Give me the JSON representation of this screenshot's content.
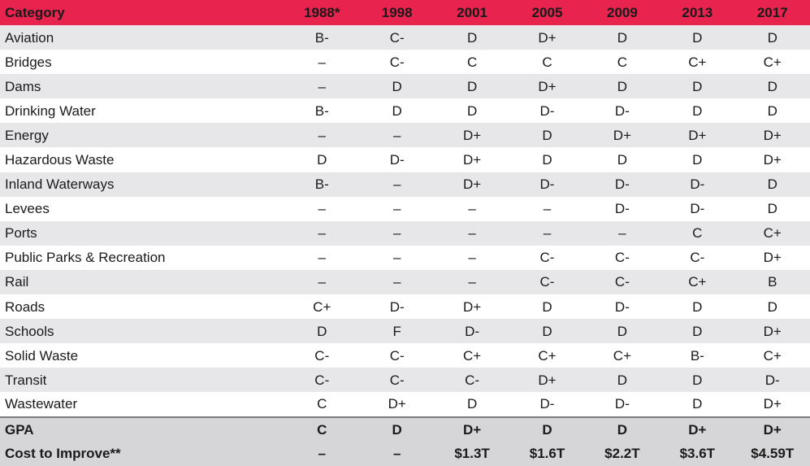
{
  "table": {
    "header": [
      "Category",
      "1988*",
      "1998",
      "2001",
      "2005",
      "2009",
      "2013",
      "2017"
    ],
    "rows": [
      [
        "Aviation",
        "B-",
        "C-",
        "D",
        "D+",
        "D",
        "D",
        "D"
      ],
      [
        "Bridges",
        "–",
        "C-",
        "C",
        "C",
        "C",
        "C+",
        "C+"
      ],
      [
        "Dams",
        "–",
        "D",
        "D",
        "D+",
        "D",
        "D",
        "D"
      ],
      [
        "Drinking Water",
        "B-",
        "D",
        "D",
        "D-",
        "D-",
        "D",
        "D"
      ],
      [
        "Energy",
        "–",
        "–",
        "D+",
        "D",
        "D+",
        "D+",
        "D+"
      ],
      [
        "Hazardous Waste",
        "D",
        "D-",
        "D+",
        "D",
        "D",
        "D",
        "D+"
      ],
      [
        "Inland Waterways",
        "B-",
        "–",
        "D+",
        "D-",
        "D-",
        "D-",
        "D"
      ],
      [
        "Levees",
        "–",
        "–",
        "–",
        "–",
        "D-",
        "D-",
        "D"
      ],
      [
        "Ports",
        "–",
        "–",
        "–",
        "–",
        "–",
        "C",
        "C+"
      ],
      [
        "Public Parks & Recreation",
        "–",
        "–",
        "–",
        "C-",
        "C-",
        "C-",
        "D+"
      ],
      [
        "Rail",
        "–",
        "–",
        "–",
        "C-",
        "C-",
        "C+",
        "B"
      ],
      [
        "Roads",
        "C+",
        "D-",
        "D+",
        "D",
        "D-",
        "D",
        "D"
      ],
      [
        "Schools",
        "D",
        "F",
        "D-",
        "D",
        "D",
        "D",
        "D+"
      ],
      [
        "Solid Waste",
        "C-",
        "C-",
        "C+",
        "C+",
        "C+",
        "B-",
        "C+"
      ],
      [
        "Transit",
        "C-",
        "C-",
        "C-",
        "D+",
        "D",
        "D",
        "D-"
      ],
      [
        "Wastewater",
        "C",
        "D+",
        "D",
        "D-",
        "D-",
        "D",
        "D+"
      ]
    ],
    "footer": [
      [
        "GPA",
        "C",
        "D",
        "D+",
        "D",
        "D",
        "D+",
        "D+"
      ],
      [
        "Cost to Improve**",
        "–",
        "–",
        "$1.3T",
        "$1.6T",
        "$2.2T",
        "$3.6T",
        "$4.59T"
      ]
    ]
  },
  "colors": {
    "header_bg": "#e8234e",
    "header_text": "#ffffff",
    "row_stripe": "#e7e7e9",
    "footer_bg": "#d6d6d8"
  }
}
